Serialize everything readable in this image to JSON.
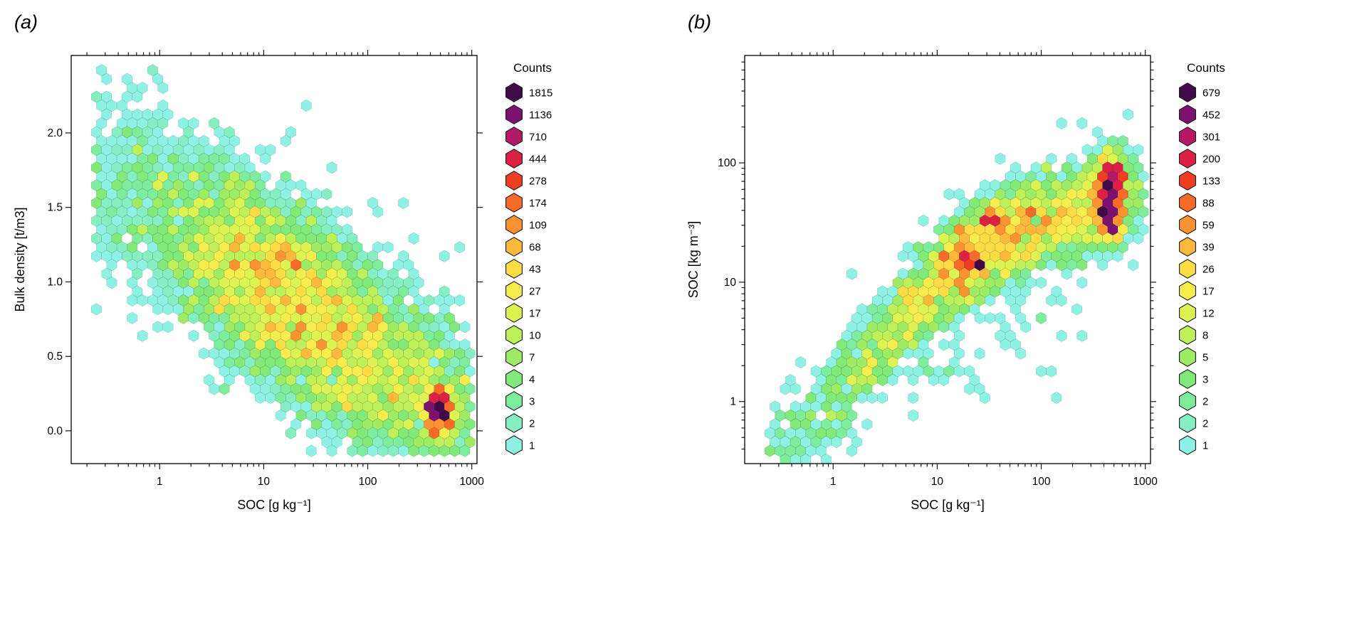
{
  "chart_data": [
    {
      "panel_label": "(a)",
      "type": "heatmap",
      "subtype": "hexbin",
      "x_axis": {
        "label": "SOC [g kg⁻¹]",
        "scale": "log10",
        "tick_values": [
          1,
          10,
          100,
          1000
        ],
        "tick_labels": [
          "1",
          "10",
          "100",
          "1000"
        ],
        "range_log10": [
          -0.85,
          3.05
        ]
      },
      "y_axis": {
        "label": "Bulk density [t/m3]",
        "scale": "linear",
        "tick_values": [
          0,
          0.5,
          1,
          1.5,
          2
        ],
        "tick_labels": [
          "0.0",
          "0.5",
          "1.0",
          "1.5",
          "2.0"
        ],
        "range": [
          -0.22,
          2.52
        ]
      },
      "legend": {
        "title": "Counts",
        "levels": [
          {
            "count": 1815,
            "color": "#400A49"
          },
          {
            "count": 1136,
            "color": "#7C1170"
          },
          {
            "count": 710,
            "color": "#B41866"
          },
          {
            "count": 444,
            "color": "#DD2144"
          },
          {
            "count": 278,
            "color": "#F03E22"
          },
          {
            "count": 174,
            "color": "#F76A27"
          },
          {
            "count": 109,
            "color": "#FA9330"
          },
          {
            "count": 68,
            "color": "#FCB93B"
          },
          {
            "count": 43,
            "color": "#FBDC45"
          },
          {
            "count": 27,
            "color": "#F4ED4D"
          },
          {
            "count": 17,
            "color": "#DDF351"
          },
          {
            "count": 10,
            "color": "#BEF05A"
          },
          {
            "count": 7,
            "color": "#9EEC64"
          },
          {
            "count": 4,
            "color": "#81E977"
          },
          {
            "count": 3,
            "color": "#7DEC9D"
          },
          {
            "count": 2,
            "color": "#85EFC3"
          },
          {
            "count": 1,
            "color": "#8DF2E3"
          }
        ]
      },
      "hex_model": {
        "seed": 7,
        "u_range": [
          -0.62,
          3.02
        ],
        "v_range": [
          -0.17,
          2.44
        ],
        "ridge": {
          "intercept": 1.47,
          "slope": -0.48,
          "center_min": 0.1,
          "sigma": 0.26
        },
        "amp_profile": [
          [
            -0.6,
            1.0
          ],
          [
            -0.2,
            2.5
          ],
          [
            0.2,
            8
          ],
          [
            0.6,
            22
          ],
          [
            0.9,
            38
          ],
          [
            1.2,
            46
          ],
          [
            1.5,
            40
          ],
          [
            1.8,
            30
          ],
          [
            2.1,
            21
          ],
          [
            2.4,
            15
          ],
          [
            2.6,
            14
          ],
          [
            2.8,
            9
          ],
          [
            3.0,
            2
          ]
        ],
        "background": {
          "amp": 0.7,
          "sigma": 0.62
        },
        "hotspots": [
          {
            "u": 2.68,
            "v": 0.125,
            "su": 0.05,
            "sv": 0.06,
            "amp": 1900
          },
          {
            "u": 1.56,
            "v": 1.0,
            "su": 0.035,
            "sv": 0.025,
            "amp": 80
          }
        ],
        "noise_sd": 0.7
      }
    },
    {
      "panel_label": "(b)",
      "type": "heatmap",
      "subtype": "hexbin",
      "x_axis": {
        "label": "SOC [g kg⁻¹]",
        "scale": "log10",
        "tick_values": [
          1,
          10,
          100,
          1000
        ],
        "tick_labels": [
          "1",
          "10",
          "100",
          "1000"
        ],
        "range_log10": [
          -0.85,
          3.05
        ]
      },
      "y_axis": {
        "label": "SOC [kg m⁻³]",
        "scale": "log10",
        "tick_values": [
          1,
          10,
          100
        ],
        "tick_labels": [
          "1",
          "10",
          "100"
        ],
        "range_log10": [
          -0.52,
          2.9
        ]
      },
      "legend": {
        "title": "Counts",
        "levels": [
          {
            "count": 679,
            "color": "#400A49"
          },
          {
            "count": 452,
            "color": "#7C1170"
          },
          {
            "count": 301,
            "color": "#B41866"
          },
          {
            "count": 200,
            "color": "#DD2144"
          },
          {
            "count": 133,
            "color": "#F03E22"
          },
          {
            "count": 88,
            "color": "#F76A27"
          },
          {
            "count": 59,
            "color": "#FA9330"
          },
          {
            "count": 39,
            "color": "#FCB93B"
          },
          {
            "count": 26,
            "color": "#FBDC45"
          },
          {
            "count": 17,
            "color": "#F4ED4D"
          },
          {
            "count": 12,
            "color": "#DDF351"
          },
          {
            "count": 8,
            "color": "#BEF05A"
          },
          {
            "count": 5,
            "color": "#9EEC64"
          },
          {
            "count": 3,
            "color": "#81E977"
          },
          {
            "count": 2,
            "color": "#7DEC9D"
          },
          {
            "count": 2,
            "color": "#85EFC3"
          },
          {
            "count": 1,
            "color": "#8DF2E3"
          }
        ]
      },
      "hex_model": {
        "seed": 31,
        "u_range": [
          -0.62,
          3.02
        ],
        "v_range": [
          -0.5,
          2.86
        ],
        "ridge_profile": [
          [
            -0.5,
            -0.45
          ],
          [
            0,
            0.0
          ],
          [
            0.5,
            0.55
          ],
          [
            1.0,
            1.0
          ],
          [
            1.5,
            1.33
          ],
          [
            2.0,
            1.52
          ],
          [
            2.4,
            1.62
          ],
          [
            2.7,
            1.7
          ],
          [
            3.0,
            1.75
          ]
        ],
        "ridge_sigma": 0.16,
        "amp_profile": [
          [
            -0.55,
            0.8
          ],
          [
            -0.1,
            2.5
          ],
          [
            0.3,
            6
          ],
          [
            0.7,
            14
          ],
          [
            1.0,
            30
          ],
          [
            1.3,
            52
          ],
          [
            1.6,
            44
          ],
          [
            1.9,
            32
          ],
          [
            2.2,
            27
          ],
          [
            2.5,
            20
          ],
          [
            2.75,
            10
          ],
          [
            3.0,
            1.5
          ]
        ],
        "background": {
          "amp": 0.5,
          "sigma": 0.5
        },
        "below_scatter": {
          "amp": 0.28,
          "u_min": 0.7,
          "u_max": 2.45,
          "w_center": 0.3,
          "w_sigma": 0.4
        },
        "hotspots": [
          {
            "u": 2.66,
            "v": 1.72,
            "su": 0.06,
            "sv": 0.14,
            "amp": 700
          },
          {
            "u": 1.52,
            "v": 1.54,
            "su": 0.05,
            "sv": 0.05,
            "amp": 150
          },
          {
            "u": 1.22,
            "v": 1.2,
            "su": 0.1,
            "sv": 0.07,
            "amp": 90
          }
        ],
        "noise_sd": 0.7
      }
    }
  ]
}
